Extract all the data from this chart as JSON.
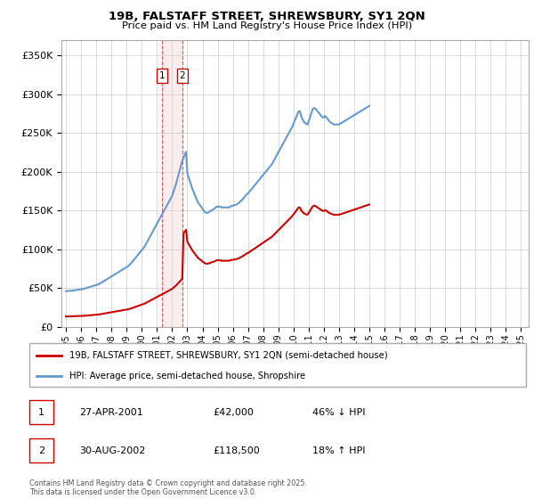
{
  "title": "19B, FALSTAFF STREET, SHREWSBURY, SY1 2QN",
  "subtitle": "Price paid vs. HM Land Registry's House Price Index (HPI)",
  "ylim": [
    0,
    370000
  ],
  "yticks": [
    0,
    50000,
    100000,
    150000,
    200000,
    250000,
    300000,
    350000
  ],
  "xlim_start": 1994.7,
  "xlim_end": 2025.5,
  "hpi_color": "#6699cc",
  "price_color": "#cc0000",
  "background_color": "#ffffff",
  "grid_color": "#cccccc",
  "legend_entries": [
    "19B, FALSTAFF STREET, SHREWSBURY, SY1 2QN (semi-detached house)",
    "HPI: Average price, semi-detached house, Shropshire"
  ],
  "t1_date": 2001.32,
  "t1_price": 42000,
  "t2_date": 2002.66,
  "t2_price": 118500,
  "annotation_table": [
    {
      "num": "1",
      "date": "27-APR-2001",
      "price": "£42,000",
      "hpi": "46% ↓ HPI"
    },
    {
      "num": "2",
      "date": "30-AUG-2002",
      "price": "£118,500",
      "hpi": "18% ↑ HPI"
    }
  ],
  "footer": "Contains HM Land Registry data © Crown copyright and database right 2025.\nThis data is licensed under the Open Government Licence v3.0.",
  "hpi_data_y": [
    46000,
    46200,
    46400,
    46300,
    46500,
    46800,
    47000,
    47200,
    47500,
    47800,
    48000,
    48200,
    48500,
    48700,
    49000,
    49500,
    50000,
    50500,
    51000,
    51500,
    52000,
    52500,
    53000,
    53500,
    54000,
    54500,
    55000,
    56000,
    57000,
    58000,
    59000,
    60000,
    61000,
    62000,
    63000,
    64000,
    65000,
    66000,
    67000,
    68000,
    69000,
    70000,
    71000,
    72000,
    73000,
    74000,
    75000,
    76000,
    77000,
    78000,
    79500,
    81000,
    83000,
    85000,
    87000,
    89000,
    91000,
    93000,
    95000,
    97000,
    99000,
    101000,
    103000,
    106000,
    109000,
    112000,
    115000,
    118000,
    121000,
    124000,
    127000,
    130000,
    133000,
    136000,
    139000,
    142000,
    145000,
    148000,
    151000,
    154000,
    157000,
    160000,
    163000,
    166000,
    169000,
    174000,
    179000,
    184000,
    190000,
    196000,
    202000,
    208000,
    214000,
    218000,
    222000,
    226000,
    198000,
    193000,
    188000,
    183000,
    178000,
    174000,
    170000,
    166000,
    162000,
    159000,
    157000,
    155000,
    152000,
    150000,
    148000,
    147000,
    147000,
    148000,
    149000,
    150000,
    151000,
    152000,
    153000,
    155000,
    155000,
    155000,
    155000,
    154000,
    154000,
    154000,
    154000,
    154000,
    154000,
    154000,
    155000,
    156000,
    156000,
    157000,
    157000,
    158000,
    159000,
    160000,
    162000,
    163000,
    165000,
    167000,
    169000,
    171000,
    172000,
    174000,
    176000,
    178000,
    180000,
    182000,
    184000,
    186000,
    188000,
    190000,
    192000,
    194000,
    196000,
    198000,
    200000,
    202000,
    204000,
    206000,
    208000,
    210000,
    213000,
    216000,
    219000,
    222000,
    225000,
    228000,
    231000,
    234000,
    237000,
    240000,
    243000,
    246000,
    249000,
    252000,
    255000,
    258000,
    262000,
    266000,
    270000,
    274000,
    278000,
    278000,
    272000,
    268000,
    265000,
    263000,
    262000,
    261000,
    265000,
    270000,
    275000,
    280000,
    282000,
    282000,
    280000,
    278000,
    276000,
    274000,
    272000,
    270000,
    270000,
    272000,
    270000,
    268000,
    266000,
    264000,
    263000,
    262000,
    261000,
    261000,
    261000,
    261000,
    261000,
    262000,
    263000,
    264000,
    265000,
    266000,
    267000,
    268000,
    269000,
    270000,
    271000,
    272000,
    273000,
    274000,
    275000,
    276000,
    277000,
    278000,
    279000,
    280000,
    281000,
    282000,
    283000,
    284000,
    285000
  ],
  "xticks": [
    1995,
    1996,
    1997,
    1998,
    1999,
    2000,
    2001,
    2002,
    2003,
    2004,
    2005,
    2006,
    2007,
    2008,
    2009,
    2010,
    2011,
    2012,
    2013,
    2014,
    2015,
    2016,
    2017,
    2018,
    2019,
    2020,
    2021,
    2022,
    2023,
    2024,
    2025
  ]
}
